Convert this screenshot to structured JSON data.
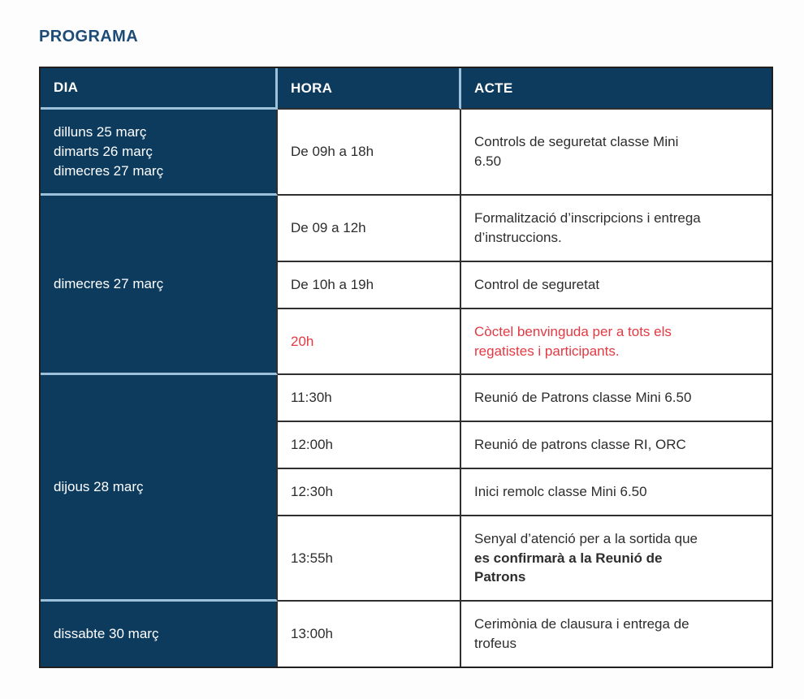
{
  "title": "PROGRAMA",
  "colors": {
    "navy_cell": "#0d3b5e",
    "title_navy": "#1d4b77",
    "highlight_red": "#e33942",
    "body_text": "#2d2d2d",
    "light_divider": "#9dc1da",
    "dark_border": "#2f2f2f",
    "header_text": "#ffffff"
  },
  "table": {
    "columns": [
      {
        "id": "dia",
        "label": "DIA"
      },
      {
        "id": "hora",
        "label": "HORA"
      },
      {
        "id": "acte",
        "label": "ACTE"
      }
    ],
    "groups": [
      {
        "dia_lines": [
          "dilluns 25 març",
          "dimarts 26 març",
          "dimecres 27 març"
        ],
        "rows": [
          {
            "hora": "De 09h a 18h",
            "highlight": false,
            "acte": [
              {
                "text": "Controls de seguretat classe Mini 6.50",
                "bold": false
              }
            ]
          }
        ]
      },
      {
        "dia_lines": [
          "dimecres 27 març"
        ],
        "rows": [
          {
            "hora": "De 09 a 12h",
            "highlight": false,
            "acte": [
              {
                "text": "Formalització d’inscripcions i entrega d’instruccions.",
                "bold": false
              }
            ]
          },
          {
            "hora": "De 10h a 19h",
            "highlight": false,
            "acte": [
              {
                "text": "Control de seguretat",
                "bold": false
              }
            ]
          },
          {
            "hora": "20h",
            "highlight": true,
            "acte": [
              {
                "text": "Còctel benvinguda per a tots els regatistes i participants.",
                "bold": false
              }
            ]
          }
        ]
      },
      {
        "dia_lines": [
          "dijous 28 març"
        ],
        "rows": [
          {
            "hora": "11:30h",
            "highlight": false,
            "acte": [
              {
                "text": "Reunió de Patrons classe Mini 6.50",
                "bold": false
              }
            ]
          },
          {
            "hora": "12:00h",
            "highlight": false,
            "acte": [
              {
                "text": "Reunió de patrons classe RI, ORC",
                "bold": false
              }
            ]
          },
          {
            "hora": "12:30h",
            "highlight": false,
            "acte": [
              {
                "text": "Inici remolc classe Mini 6.50",
                "bold": false
              }
            ]
          },
          {
            "hora": "13:55h",
            "highlight": false,
            "acte": [
              {
                "text": "Senyal d’atenció per a la sortida que ",
                "bold": false
              },
              {
                "text": "es confirmarà a la Reunió de Patrons",
                "bold": true
              }
            ]
          }
        ]
      },
      {
        "dia_lines": [
          "dissabte 30 març"
        ],
        "rows": [
          {
            "hora": "13:00h",
            "highlight": false,
            "acte": [
              {
                "text": "Cerimònia de clausura i entrega de trofeus",
                "bold": false
              }
            ]
          }
        ]
      }
    ]
  }
}
